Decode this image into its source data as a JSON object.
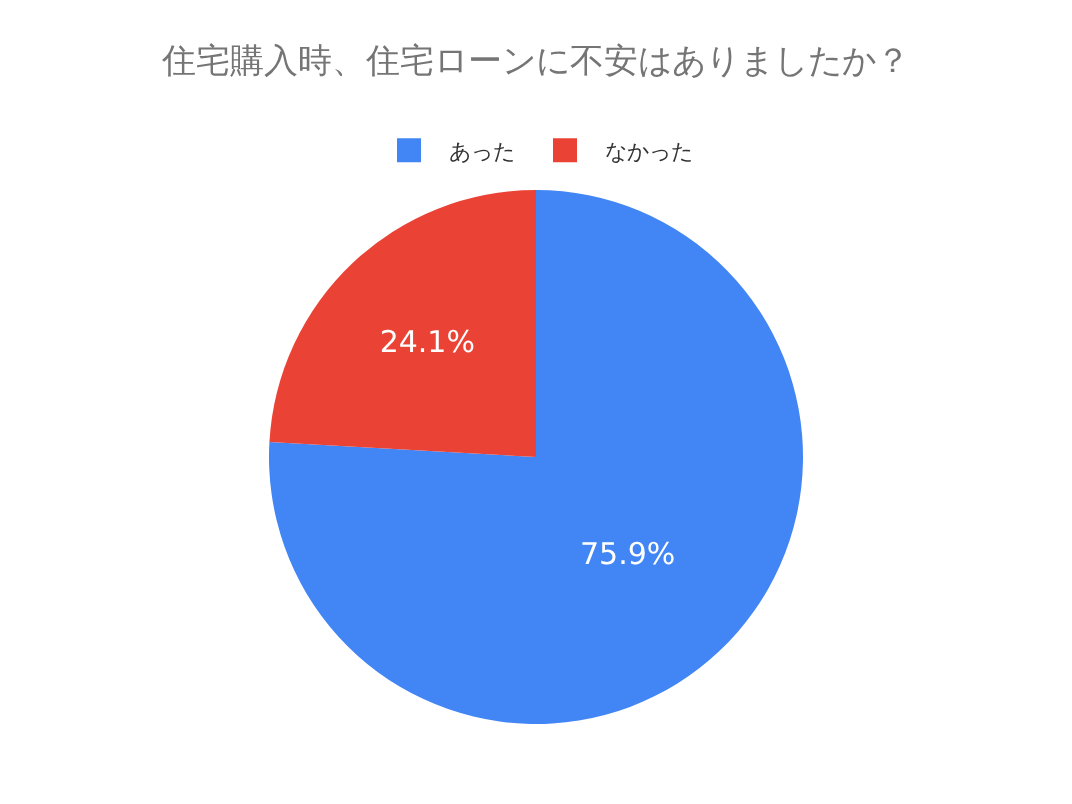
{
  "chart_data": {
    "type": "pie",
    "title": "住宅購入時、住宅ローンに不安はありましたか？",
    "categories": [
      "あった",
      "なかった"
    ],
    "values": [
      75.9,
      24.1
    ],
    "colors": [
      "#4285f4",
      "#ea4335"
    ],
    "value_labels": [
      "75.9%",
      "24.1%"
    ],
    "legend": "top"
  }
}
